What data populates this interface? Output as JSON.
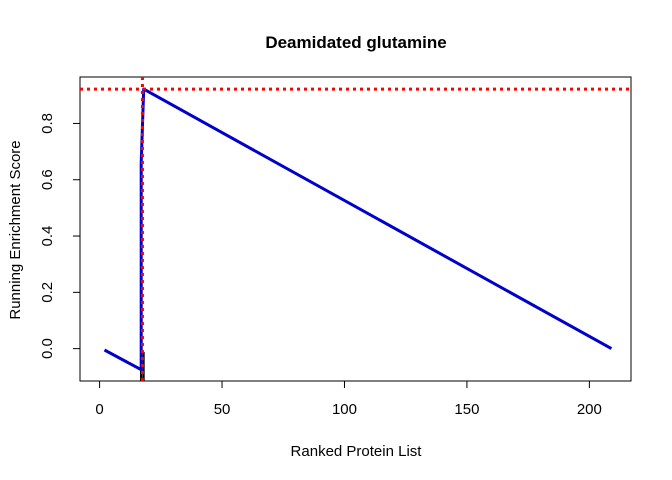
{
  "chart_data": {
    "type": "line",
    "title": "Deamidated glutamine",
    "xlabel": "Ranked Protein List",
    "ylabel": "Running Enrichment Score",
    "xlim": [
      -8,
      217
    ],
    "ylim": [
      -0.115,
      0.965
    ],
    "x_ticks": [
      0,
      50,
      100,
      150,
      200
    ],
    "y_ticks": [
      0.0,
      0.2,
      0.4,
      0.6,
      0.8
    ],
    "x_tick_labels": [
      "0",
      "50",
      "100",
      "150",
      "200"
    ],
    "y_tick_labels": [
      "0.0",
      "0.2",
      "0.4",
      "0.6",
      "0.8"
    ],
    "series_color": "#0000cd",
    "reference_color": "#ff0000",
    "series": [
      {
        "x": [
          2,
          17,
          17,
          17,
          17,
          17,
          18,
          209
        ],
        "y": [
          -0.005,
          -0.075,
          -0.04,
          0.17,
          0.31,
          0.66,
          0.922,
          0.0
        ]
      }
    ],
    "hits": [
      17,
      17,
      17,
      18
    ],
    "max_score": 0.922,
    "max_position": 17.5,
    "grid": false,
    "legend": "none"
  }
}
